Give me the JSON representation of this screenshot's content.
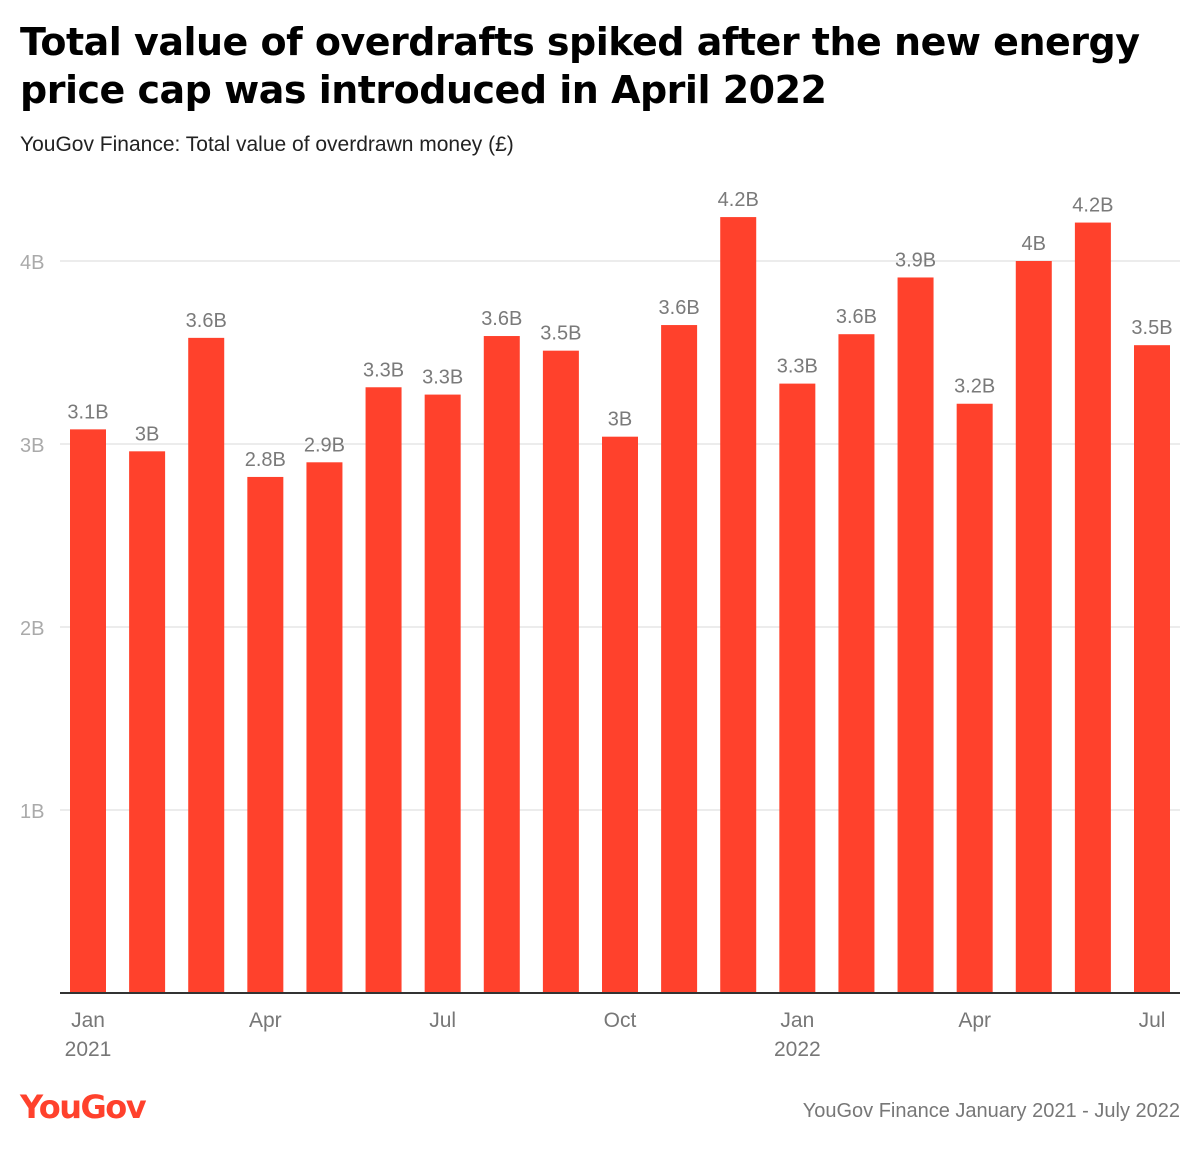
{
  "chart_data": {
    "type": "bar",
    "title": "Total value of overdrafts spiked after the new energy price cap was introduced in April 2022",
    "subtitle": "YouGov Finance: Total value of overdrawn money (£)",
    "xlabel": "",
    "ylabel": "",
    "ylim": [
      0,
      4000000000
    ],
    "yticks": [
      {
        "value": 1000000000,
        "label": "1B"
      },
      {
        "value": 2000000000,
        "label": "2B"
      },
      {
        "value": 3000000000,
        "label": "3B"
      },
      {
        "value": 4000000000,
        "label": "4B"
      }
    ],
    "grid": true,
    "categories": [
      "Jan 2021",
      "Feb 2021",
      "Mar 2021",
      "Apr 2021",
      "May 2021",
      "Jun 2021",
      "Jul 2021",
      "Aug 2021",
      "Sep 2021",
      "Oct 2021",
      "Nov 2021",
      "Dec 2021",
      "Jan 2022",
      "Feb 2022",
      "Mar 2022",
      "Apr 2022",
      "May 2022",
      "Jun 2022",
      "Jul 2022"
    ],
    "values": [
      3080000000,
      2960000000,
      3580000000,
      2820000000,
      2900000000,
      3310000000,
      3270000000,
      3590000000,
      3510000000,
      3040000000,
      3650000000,
      4240000000,
      3330000000,
      3600000000,
      3910000000,
      3220000000,
      4000000000,
      4210000000,
      3540000000
    ],
    "data_labels": [
      "3.1B",
      "3B",
      "3.6B",
      "2.8B",
      "2.9B",
      "3.3B",
      "3.3B",
      "3.6B",
      "3.5B",
      "3B",
      "3.6B",
      "4.2B",
      "3.3B",
      "3.6B",
      "3.9B",
      "3.2B",
      "4B",
      "4.2B",
      "3.5B"
    ],
    "x_tick_labels": [
      {
        "index": 0,
        "lines": [
          "Jan",
          "2021"
        ]
      },
      {
        "index": 3,
        "lines": [
          "Apr"
        ]
      },
      {
        "index": 6,
        "lines": [
          "Jul"
        ]
      },
      {
        "index": 9,
        "lines": [
          "Oct"
        ]
      },
      {
        "index": 12,
        "lines": [
          "Jan",
          "2022"
        ]
      },
      {
        "index": 15,
        "lines": [
          "Apr"
        ]
      },
      {
        "index": 18,
        "lines": [
          "Jul"
        ]
      }
    ],
    "bar_color": "#ff412c"
  },
  "footer": {
    "logo": "YouGov",
    "source": "YouGov Finance January 2021 - July 2022"
  },
  "colors": {
    "brand": "#ff412c",
    "grid": "#e6e6e6",
    "axis": "#333333"
  }
}
